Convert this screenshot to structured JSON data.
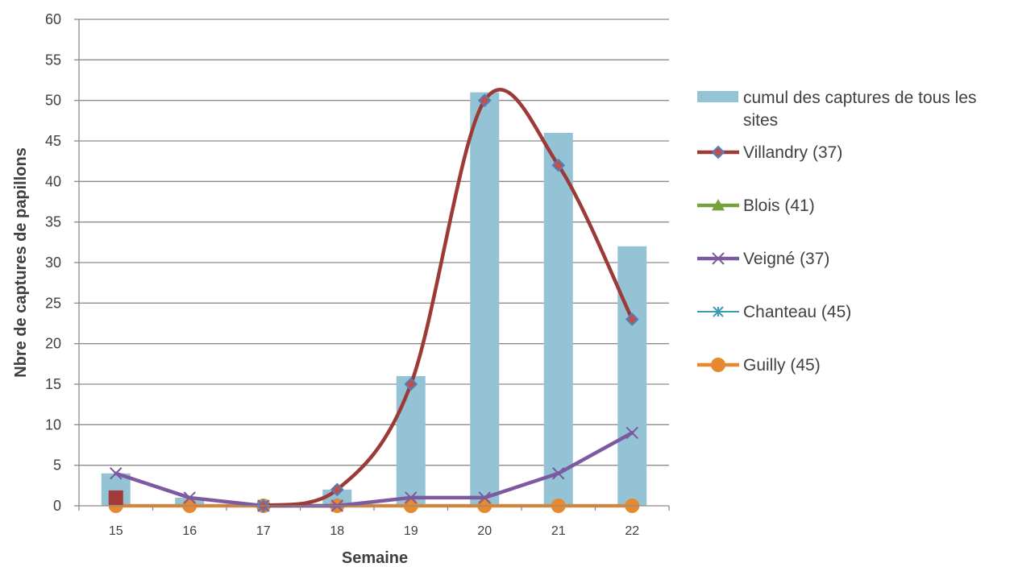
{
  "chart_data": {
    "type": "bar",
    "xlabel": "Semaine",
    "ylabel": "Nbre de captures de papillons",
    "ylim": [
      0,
      60
    ],
    "ytick_step": 5,
    "grid": true,
    "legend_position": "right",
    "categories": [
      "15",
      "16",
      "17",
      "18",
      "19",
      "20",
      "21",
      "22"
    ],
    "bar_series": {
      "name": "cumul des captures de tous les sites",
      "color": "#93c3d4",
      "values": [
        4,
        1,
        0,
        2,
        16,
        51,
        46,
        32
      ]
    },
    "line_series": [
      {
        "name": "Villandry (37)",
        "color": "#9b3a36",
        "marker": "diamond",
        "marker_fill": "#c0504d",
        "marker_stroke": "#4f81bd",
        "values": [
          null,
          null,
          0,
          2,
          15,
          50,
          42,
          23
        ]
      },
      {
        "name": "Blois (41)",
        "color": "#77a03e",
        "marker": "triangle",
        "values": []
      },
      {
        "name": "Veigné (37)",
        "color": "#7b5aa0",
        "marker": "x",
        "values": [
          4,
          1,
          0,
          0,
          1,
          1,
          4,
          9
        ]
      },
      {
        "name": "Chanteau (45)",
        "color": "#3b9bb6",
        "marker": "star",
        "values": []
      },
      {
        "name": "Guilly (45)",
        "color": "#e6892f",
        "marker": "circle",
        "values": [
          0,
          0,
          0,
          0,
          0,
          0,
          0,
          0
        ]
      }
    ],
    "extra_marker": {
      "category": "15",
      "value": 1,
      "color": "#a33b3b",
      "shape": "square"
    }
  }
}
